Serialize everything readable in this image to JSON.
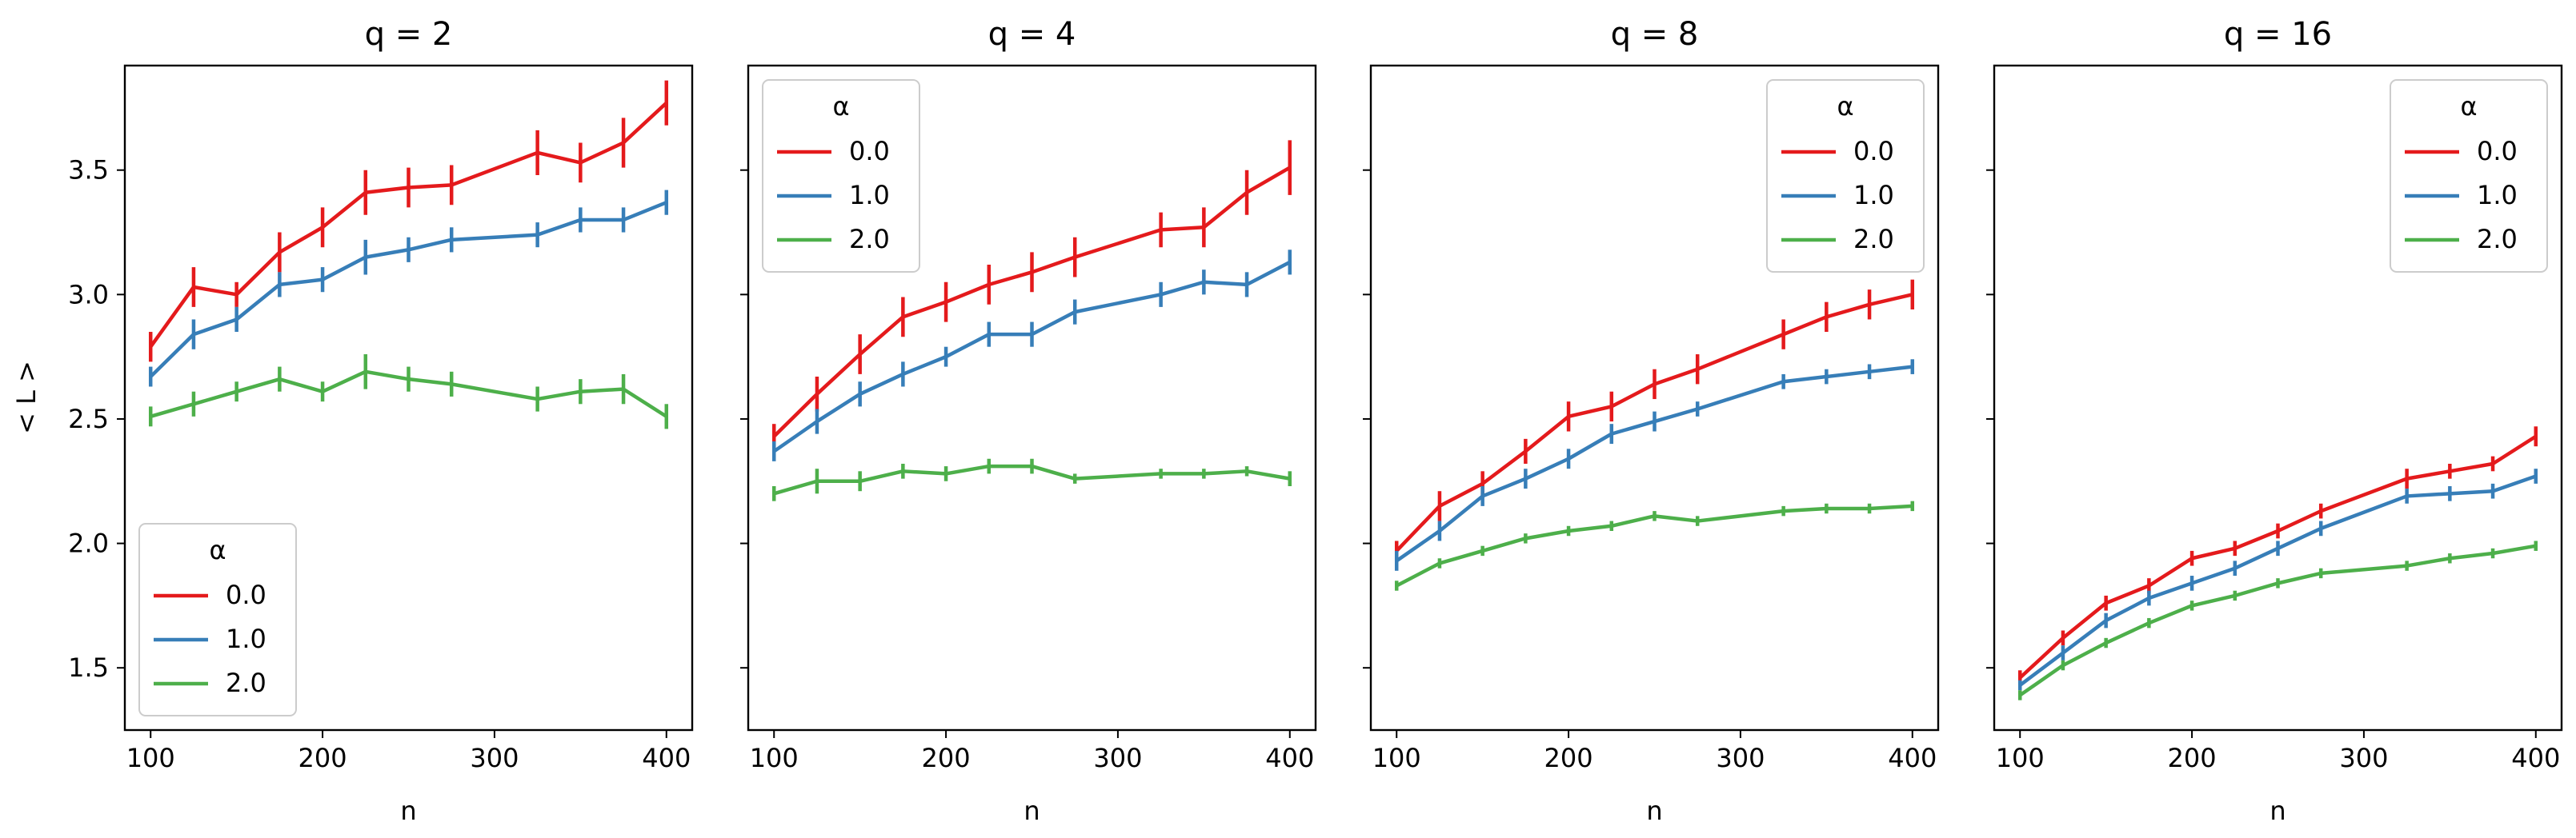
{
  "chart_data": {
    "type": "line",
    "figure": {
      "ylabel": "< L >",
      "xlabel": "n",
      "xlim": [
        85,
        415
      ],
      "ylim": [
        1.25,
        3.92
      ],
      "xticks": [
        100,
        200,
        300,
        400
      ],
      "yticks": [
        1.5,
        2.0,
        2.5,
        3.0,
        3.5
      ],
      "xtick_labels": [
        "100",
        "200",
        "300",
        "400"
      ],
      "ytick_labels": [
        "1.5",
        "2.0",
        "2.5",
        "3.0",
        "3.5"
      ],
      "shared_y": true
    },
    "legend": {
      "title": "α",
      "entries": [
        {
          "label": "0.0",
          "color": "#e41a1c"
        },
        {
          "label": "1.0",
          "color": "#377eb8"
        },
        {
          "label": "2.0",
          "color": "#4daf4a"
        }
      ]
    },
    "panels": [
      {
        "title": "q = 2",
        "legend_location": "lower-left",
        "x": [
          100,
          125,
          150,
          175,
          200,
          225,
          250,
          275,
          325,
          350,
          375,
          400
        ],
        "series": [
          {
            "name": "0.0",
            "values": [
              2.79,
              3.03,
              3.0,
              3.17,
              3.27,
              3.41,
              3.43,
              3.44,
              3.57,
              3.53,
              3.61,
              3.77
            ],
            "errors": [
              0.06,
              0.08,
              0.05,
              0.08,
              0.08,
              0.09,
              0.08,
              0.08,
              0.09,
              0.08,
              0.1,
              0.09
            ]
          },
          {
            "name": "1.0",
            "values": [
              2.67,
              2.84,
              2.9,
              3.04,
              3.06,
              3.15,
              3.18,
              3.22,
              3.24,
              3.3,
              3.3,
              3.37
            ],
            "errors": [
              0.04,
              0.06,
              0.05,
              0.05,
              0.05,
              0.07,
              0.05,
              0.05,
              0.05,
              0.05,
              0.05,
              0.05
            ]
          },
          {
            "name": "2.0",
            "values": [
              2.51,
              2.56,
              2.61,
              2.66,
              2.61,
              2.69,
              2.66,
              2.64,
              2.58,
              2.61,
              2.62,
              2.51
            ],
            "errors": [
              0.04,
              0.05,
              0.04,
              0.05,
              0.04,
              0.07,
              0.05,
              0.05,
              0.05,
              0.05,
              0.06,
              0.05
            ]
          }
        ]
      },
      {
        "title": "q = 4",
        "legend_location": "upper-left",
        "x": [
          100,
          125,
          150,
          175,
          200,
          225,
          250,
          275,
          325,
          350,
          375,
          400
        ],
        "series": [
          {
            "name": "0.0",
            "values": [
              2.43,
              2.6,
              2.76,
              2.91,
              2.97,
              3.04,
              3.09,
              3.15,
              3.26,
              3.27,
              3.41,
              3.51
            ],
            "errors": [
              0.05,
              0.07,
              0.08,
              0.08,
              0.08,
              0.08,
              0.08,
              0.08,
              0.07,
              0.08,
              0.09,
              0.11
            ]
          },
          {
            "name": "1.0",
            "values": [
              2.37,
              2.49,
              2.6,
              2.68,
              2.75,
              2.84,
              2.84,
              2.93,
              3.0,
              3.05,
              3.04,
              3.13
            ],
            "errors": [
              0.04,
              0.05,
              0.05,
              0.05,
              0.04,
              0.05,
              0.05,
              0.05,
              0.05,
              0.05,
              0.05,
              0.05
            ]
          },
          {
            "name": "2.0",
            "values": [
              2.2,
              2.25,
              2.25,
              2.29,
              2.28,
              2.31,
              2.31,
              2.26,
              2.28,
              2.28,
              2.29,
              2.26
            ],
            "errors": [
              0.03,
              0.05,
              0.04,
              0.03,
              0.03,
              0.03,
              0.03,
              0.02,
              0.02,
              0.02,
              0.02,
              0.03
            ]
          }
        ]
      },
      {
        "title": "q = 8",
        "legend_location": "upper-right",
        "x": [
          100,
          125,
          150,
          175,
          200,
          225,
          250,
          275,
          325,
          350,
          375,
          400
        ],
        "series": [
          {
            "name": "0.0",
            "values": [
              1.97,
              2.15,
              2.24,
              2.37,
              2.51,
              2.55,
              2.64,
              2.7,
              2.84,
              2.91,
              2.96,
              3.0
            ],
            "errors": [
              0.04,
              0.06,
              0.05,
              0.05,
              0.06,
              0.06,
              0.06,
              0.06,
              0.06,
              0.06,
              0.06,
              0.06
            ]
          },
          {
            "name": "1.0",
            "values": [
              1.93,
              2.05,
              2.19,
              2.26,
              2.34,
              2.44,
              2.49,
              2.54,
              2.65,
              2.67,
              2.69,
              2.71
            ],
            "errors": [
              0.04,
              0.04,
              0.04,
              0.04,
              0.04,
              0.04,
              0.04,
              0.03,
              0.03,
              0.03,
              0.03,
              0.03
            ]
          },
          {
            "name": "2.0",
            "values": [
              1.83,
              1.92,
              1.97,
              2.02,
              2.05,
              2.07,
              2.11,
              2.09,
              2.13,
              2.14,
              2.14,
              2.15
            ],
            "errors": [
              0.02,
              0.02,
              0.02,
              0.02,
              0.02,
              0.02,
              0.02,
              0.02,
              0.02,
              0.02,
              0.02,
              0.02
            ]
          }
        ]
      },
      {
        "title": "q = 16",
        "legend_location": "upper-right",
        "x": [
          100,
          125,
          150,
          175,
          200,
          225,
          250,
          275,
          325,
          350,
          375,
          400
        ],
        "series": [
          {
            "name": "0.0",
            "values": [
              1.46,
              1.62,
              1.76,
              1.83,
              1.94,
              1.98,
              2.05,
              2.13,
              2.26,
              2.29,
              2.32,
              2.43
            ],
            "errors": [
              0.03,
              0.03,
              0.03,
              0.03,
              0.03,
              0.03,
              0.03,
              0.03,
              0.04,
              0.03,
              0.03,
              0.04
            ]
          },
          {
            "name": "1.0",
            "values": [
              1.43,
              1.56,
              1.69,
              1.78,
              1.84,
              1.9,
              1.98,
              2.06,
              2.19,
              2.2,
              2.21,
              2.27
            ],
            "errors": [
              0.02,
              0.03,
              0.03,
              0.03,
              0.03,
              0.03,
              0.03,
              0.03,
              0.03,
              0.03,
              0.03,
              0.03
            ]
          },
          {
            "name": "2.0",
            "values": [
              1.39,
              1.51,
              1.6,
              1.68,
              1.75,
              1.79,
              1.84,
              1.88,
              1.91,
              1.94,
              1.96,
              1.99
            ],
            "errors": [
              0.02,
              0.02,
              0.02,
              0.02,
              0.02,
              0.02,
              0.02,
              0.02,
              0.02,
              0.02,
              0.02,
              0.02
            ]
          }
        ]
      }
    ]
  }
}
